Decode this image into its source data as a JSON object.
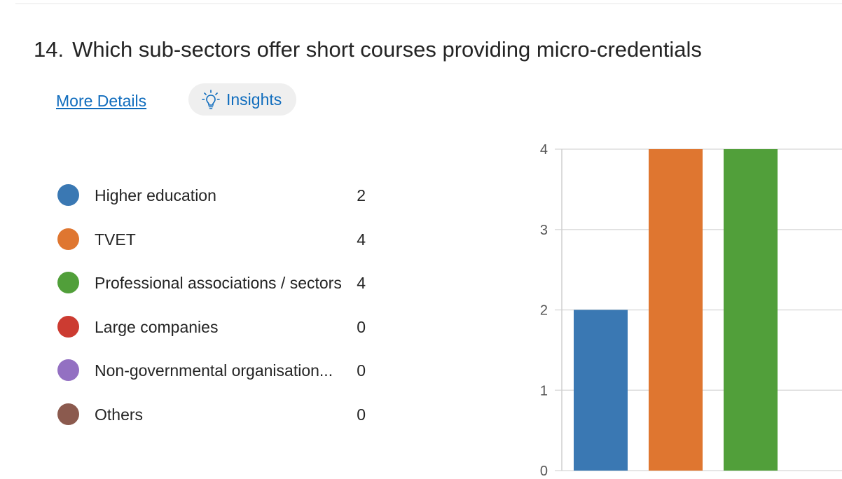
{
  "question": {
    "number": "14.",
    "title": "Which sub-sectors offer short courses providing micro-credentials"
  },
  "links": {
    "more_details": "More Details",
    "insights": "Insights"
  },
  "icons": {
    "insights": "lightbulb-icon"
  },
  "legend": {
    "items": [
      {
        "label": "Higher education",
        "count": "2",
        "color": "#3a78b3"
      },
      {
        "label": "TVET",
        "count": "4",
        "color": "#df7630"
      },
      {
        "label": "Professional associations / sectors",
        "count": "4",
        "color": "#519f3a"
      },
      {
        "label": "Large companies",
        "count": "0",
        "color": "#cc3b31"
      },
      {
        "label": "Non-governmental organisation...",
        "count": "0",
        "color": "#9370c2"
      },
      {
        "label": "Others",
        "count": "0",
        "color": "#8b5a4e"
      }
    ]
  },
  "chart_data": {
    "type": "bar",
    "categories": [
      "Higher education",
      "TVET",
      "Professional associations / sectors"
    ],
    "values": [
      2,
      4,
      4
    ],
    "colors": [
      "#3a78b3",
      "#df7630",
      "#519f3a"
    ],
    "yticks": [
      "0",
      "1",
      "2",
      "3",
      "4"
    ],
    "ylim": [
      0,
      4
    ],
    "grid": true,
    "title": "",
    "xlabel": "",
    "ylabel": ""
  }
}
